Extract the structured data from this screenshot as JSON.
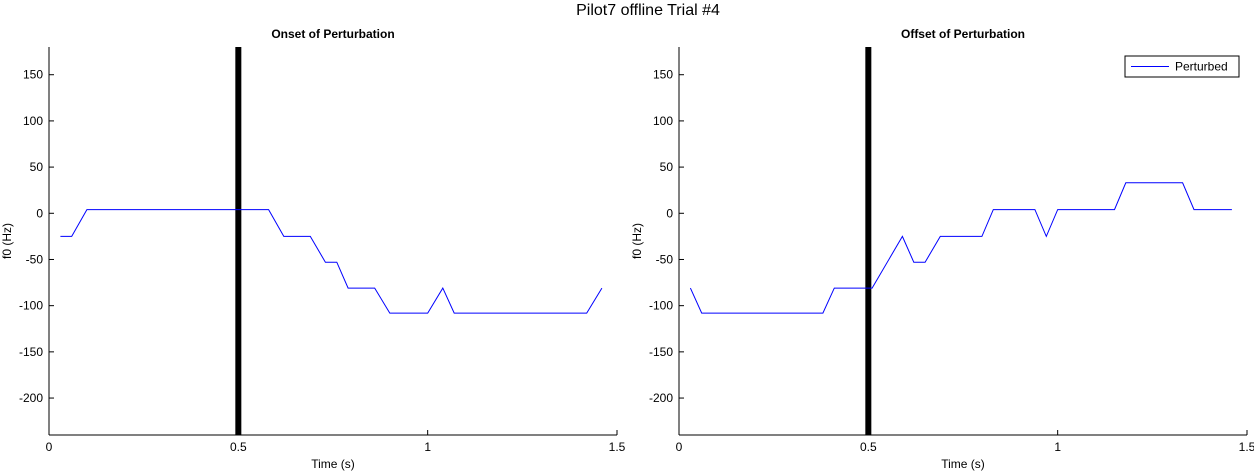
{
  "figure": {
    "title": "Pilot7 offline Trial #4"
  },
  "chart_data": [
    {
      "type": "line",
      "title": "Onset of Perturbation",
      "xlabel": "Time (s)",
      "ylabel": "f0 (Hz)",
      "xlim": [
        0,
        1.5
      ],
      "ylim": [
        -240,
        180
      ],
      "xticks": [
        0,
        0.5,
        1,
        1.5
      ],
      "xtick_labels": [
        "0",
        "0.5",
        "1",
        "1.5"
      ],
      "yticks": [
        150,
        100,
        50,
        0,
        -50,
        -100,
        -150,
        -200
      ],
      "ytick_labels": [
        "150",
        "100",
        "50",
        "0",
        "-50",
        "-100",
        "-150",
        "-200"
      ],
      "grid": false,
      "legend": null,
      "vline": {
        "x": 0.5,
        "color": "#000000"
      },
      "series": [
        {
          "color": "#0000ff",
          "x": [
            0.03,
            0.06,
            0.1,
            0.58,
            0.62,
            0.69,
            0.73,
            0.76,
            0.79,
            0.86,
            0.9,
            1.0,
            1.04,
            1.07,
            1.42,
            1.46
          ],
          "y": [
            -25,
            -25,
            4,
            4,
            -25,
            -25,
            -53,
            -53,
            -81,
            -81,
            -108,
            -108,
            -81,
            -108,
            -108,
            -81
          ]
        }
      ]
    },
    {
      "type": "line",
      "title": "Offset of Perturbation",
      "xlabel": "Time (s)",
      "ylabel": "f0 (Hz)",
      "xlim": [
        0,
        1.5
      ],
      "ylim": [
        -240,
        180
      ],
      "xticks": [
        0,
        0.5,
        1,
        1.5
      ],
      "xtick_labels": [
        "0",
        "0.5",
        "1",
        "1.5"
      ],
      "yticks": [
        150,
        100,
        50,
        0,
        -50,
        -100,
        -150,
        -200
      ],
      "ytick_labels": [
        "150",
        "100",
        "50",
        "0",
        "-50",
        "-100",
        "-150",
        "-200"
      ],
      "grid": false,
      "legend": {
        "entries": [
          "Perturbed"
        ],
        "placement": "top-right"
      },
      "vline": {
        "x": 0.5,
        "color": "#000000"
      },
      "series": [
        {
          "name": "Perturbed",
          "color": "#0000ff",
          "x": [
            0.03,
            0.06,
            0.38,
            0.41,
            0.51,
            0.59,
            0.62,
            0.65,
            0.69,
            0.8,
            0.83,
            0.94,
            0.97,
            1.0,
            1.15,
            1.18,
            1.33,
            1.36,
            1.46
          ],
          "y": [
            -81,
            -108,
            -108,
            -81,
            -81,
            -25,
            -53,
            -53,
            -25,
            -25,
            4,
            4,
            -25,
            4,
            4,
            33,
            33,
            4,
            4
          ]
        }
      ]
    }
  ]
}
